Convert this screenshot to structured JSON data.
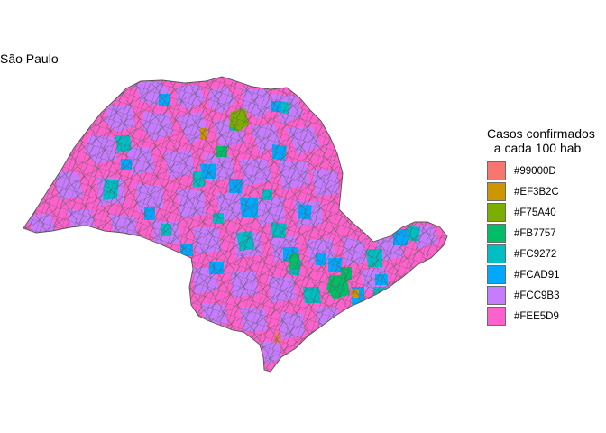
{
  "title": "São Paulo",
  "legend": {
    "title_line1": "Casos confirmados",
    "title_line2": "a cada 100 hab",
    "items": [
      {
        "label": "#99000D",
        "color": "#F8766D"
      },
      {
        "label": "#EF3B2C",
        "color": "#CD9600"
      },
      {
        "label": "#F75A40",
        "color": "#7CAE00"
      },
      {
        "label": "#FB7757",
        "color": "#00BE67"
      },
      {
        "label": "#FC9272",
        "color": "#00BFC4"
      },
      {
        "label": "#FCAD91",
        "color": "#00A9FF"
      },
      {
        "label": "#FCC9B3",
        "color": "#C77CFF"
      },
      {
        "label": "#FEE5D9",
        "color": "#FF61CC"
      }
    ]
  }
}
